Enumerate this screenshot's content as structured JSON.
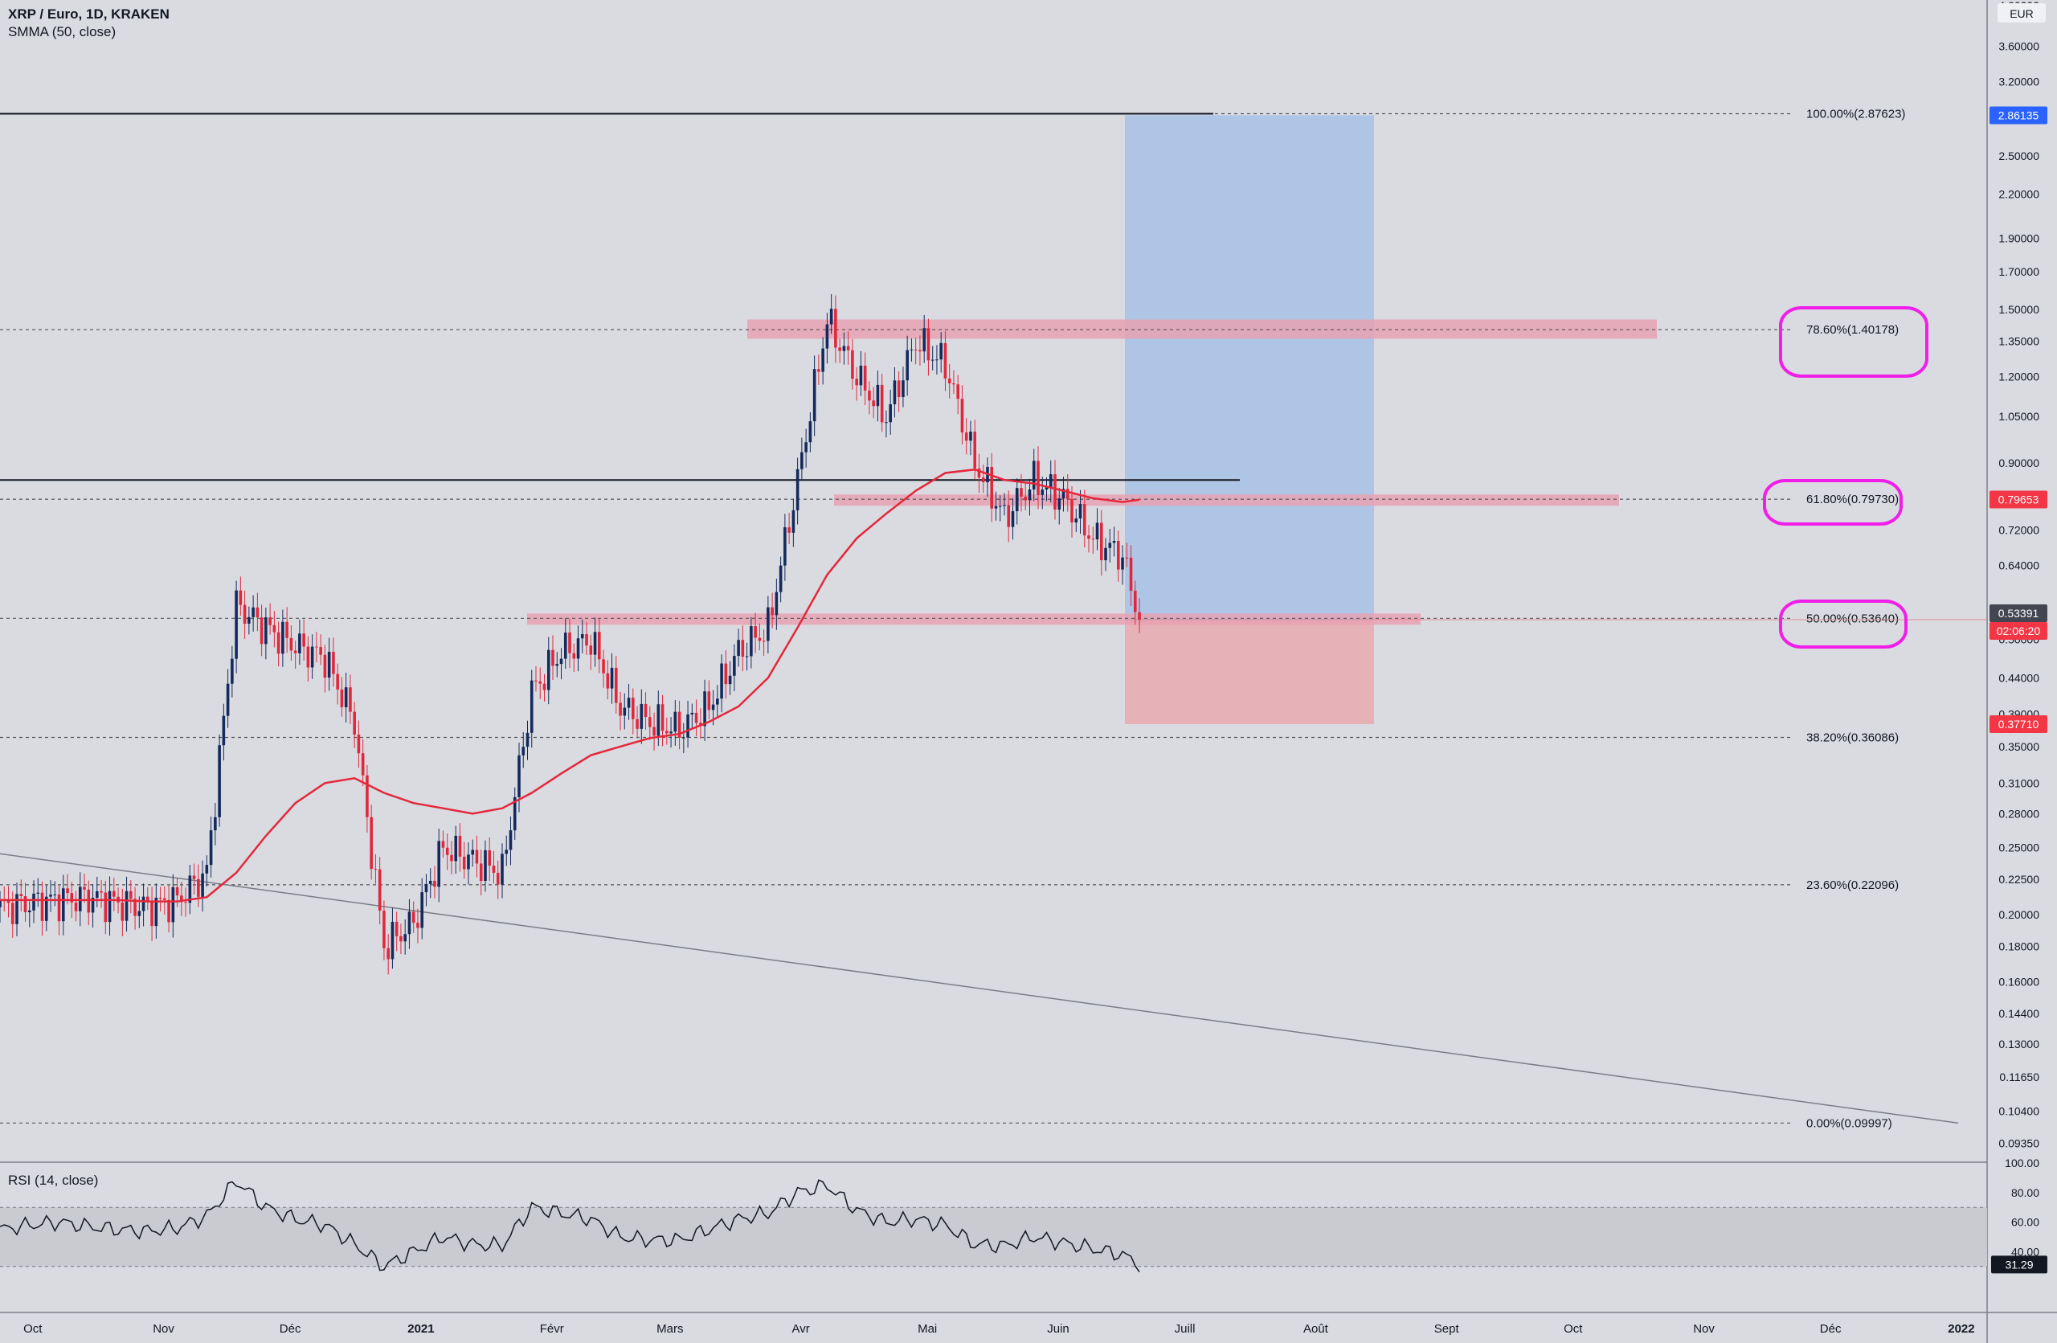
{
  "header": {
    "symbol": "XRP / Euro, 1D, KRAKEN",
    "indicator": "SMMA (50, close)",
    "currency": "EUR",
    "rsi_title": "RSI (14, close)"
  },
  "price_axis": {
    "ticks": [
      "3.60000",
      "3.20000",
      "2.86135",
      "2.50000",
      "2.20000",
      "1.90000",
      "1.70000",
      "1.50000",
      "1.35000",
      "1.20000",
      "1.05000",
      "0.90000",
      "0.79653",
      "0.72000",
      "0.64000",
      "0.53391",
      "02:06:20",
      "0.50000",
      "0.44000",
      "0.39000",
      "0.37710",
      "0.35000",
      "0.31000",
      "0.28000",
      "0.25000",
      "0.22500",
      "0.20000",
      "0.18000",
      "0.16000",
      "0.14400",
      "0.13000",
      "0.11650",
      "0.10400",
      "0.09350"
    ],
    "top_partial": "4.00000"
  },
  "price_badges": [
    {
      "text": "2.86135",
      "color": "#2962ff"
    },
    {
      "text": "0.79653",
      "color": "#f23645"
    },
    {
      "text": "0.53391",
      "color": "#434651"
    },
    {
      "text": "02:06:20",
      "color": "#f23645"
    },
    {
      "text": "0.37710",
      "color": "#f23645"
    }
  ],
  "fib_levels": [
    {
      "label": "100.00%(2.87623)",
      "price": 2.87623
    },
    {
      "label": "78.60%(1.40178)",
      "price": 1.40178
    },
    {
      "label": "61.80%(0.79730)",
      "price": 0.7973
    },
    {
      "label": "50.00%(0.53640)",
      "price": 0.5364
    },
    {
      "label": "38.20%(0.36086)",
      "price": 0.36086
    },
    {
      "label": "23.60%(0.22096)",
      "price": 0.22096
    },
    {
      "label": "0.00%(0.09997)",
      "price": 0.09997
    }
  ],
  "time_axis": [
    "Oct",
    "Nov",
    "Déc",
    "2021",
    "Févr",
    "Mars",
    "Avr",
    "Mai",
    "Juin",
    "Juill",
    "Août",
    "Sept",
    "Oct",
    "Nov",
    "Déc",
    "2022"
  ],
  "rsi_axis": [
    "100.00",
    "80.00",
    "60.00",
    "40.00"
  ],
  "rsi_badge": {
    "text": "31.29",
    "color": "#131722"
  },
  "colors": {
    "bg": "#d9dbe1",
    "candle": "#142a5c",
    "candle_down": "#e0283c",
    "smma": "#e5273a",
    "zone": "#e7a2b3",
    "profit": "#9fbde6",
    "loss": "#e8a6ad",
    "marker": "#f01ee8"
  },
  "chart_data": {
    "type": "candlestick",
    "symbol": "XRP / Euro",
    "interval": "1D",
    "exchange": "KRAKEN",
    "y_scale": "log",
    "x": [
      "2020-09-24",
      "2020-10-01",
      "2020-10-08",
      "2020-10-15",
      "2020-10-22",
      "2020-10-29",
      "2020-11-05",
      "2020-11-12",
      "2020-11-19",
      "2020-11-26",
      "2020-12-03",
      "2020-12-10",
      "2020-12-17",
      "2020-12-24",
      "2020-12-31",
      "2021-01-07",
      "2021-01-14",
      "2021-01-21",
      "2021-01-28",
      "2021-02-04",
      "2021-02-11",
      "2021-02-18",
      "2021-02-25",
      "2021-03-04",
      "2021-03-11",
      "2021-03-18",
      "2021-03-25",
      "2021-04-01",
      "2021-04-08",
      "2021-04-15",
      "2021-04-22",
      "2021-04-29",
      "2021-05-06",
      "2021-05-13",
      "2021-05-20",
      "2021-05-27",
      "2021-06-03",
      "2021-06-10",
      "2021-06-17",
      "2021-06-21"
    ],
    "close": [
      0.205,
      0.208,
      0.21,
      0.212,
      0.208,
      0.205,
      0.21,
      0.23,
      0.56,
      0.52,
      0.49,
      0.47,
      0.38,
      0.18,
      0.195,
      0.25,
      0.24,
      0.23,
      0.42,
      0.48,
      0.5,
      0.4,
      0.38,
      0.37,
      0.4,
      0.48,
      0.52,
      0.85,
      1.45,
      1.2,
      1.05,
      1.35,
      1.25,
      0.9,
      0.75,
      0.85,
      0.8,
      0.7,
      0.66,
      0.536
    ],
    "smma_50": [
      0.21,
      0.21,
      0.21,
      0.21,
      0.21,
      0.209,
      0.209,
      0.212,
      0.23,
      0.26,
      0.29,
      0.31,
      0.315,
      0.3,
      0.29,
      0.285,
      0.28,
      0.285,
      0.3,
      0.32,
      0.34,
      0.35,
      0.36,
      0.365,
      0.38,
      0.4,
      0.44,
      0.52,
      0.62,
      0.7,
      0.76,
      0.82,
      0.87,
      0.88,
      0.85,
      0.84,
      0.82,
      0.8,
      0.79,
      0.796
    ],
    "horizontal_lines": [
      2.87623,
      0.85
    ],
    "zones": [
      {
        "top": 1.45,
        "bottom": 1.36
      },
      {
        "top": 0.81,
        "bottom": 0.78
      },
      {
        "top": 0.545,
        "bottom": 0.525
      }
    ],
    "position": {
      "entry": 0.53391,
      "target": 2.86135,
      "stop": 0.3771
    },
    "trendline": {
      "from": [
        "2020-09-24",
        0.245
      ],
      "to": [
        "2022-01-01",
        0.09997
      ]
    },
    "rsi_14": [
      55,
      58,
      60,
      57,
      55,
      54,
      56,
      64,
      88,
      70,
      62,
      58,
      45,
      30,
      40,
      50,
      45,
      44,
      70,
      66,
      62,
      50,
      48,
      48,
      55,
      62,
      66,
      80,
      85,
      68,
      60,
      62,
      58,
      45,
      44,
      50,
      46,
      42,
      38,
      31.29
    ],
    "rsi_bands": [
      70,
      30
    ]
  }
}
